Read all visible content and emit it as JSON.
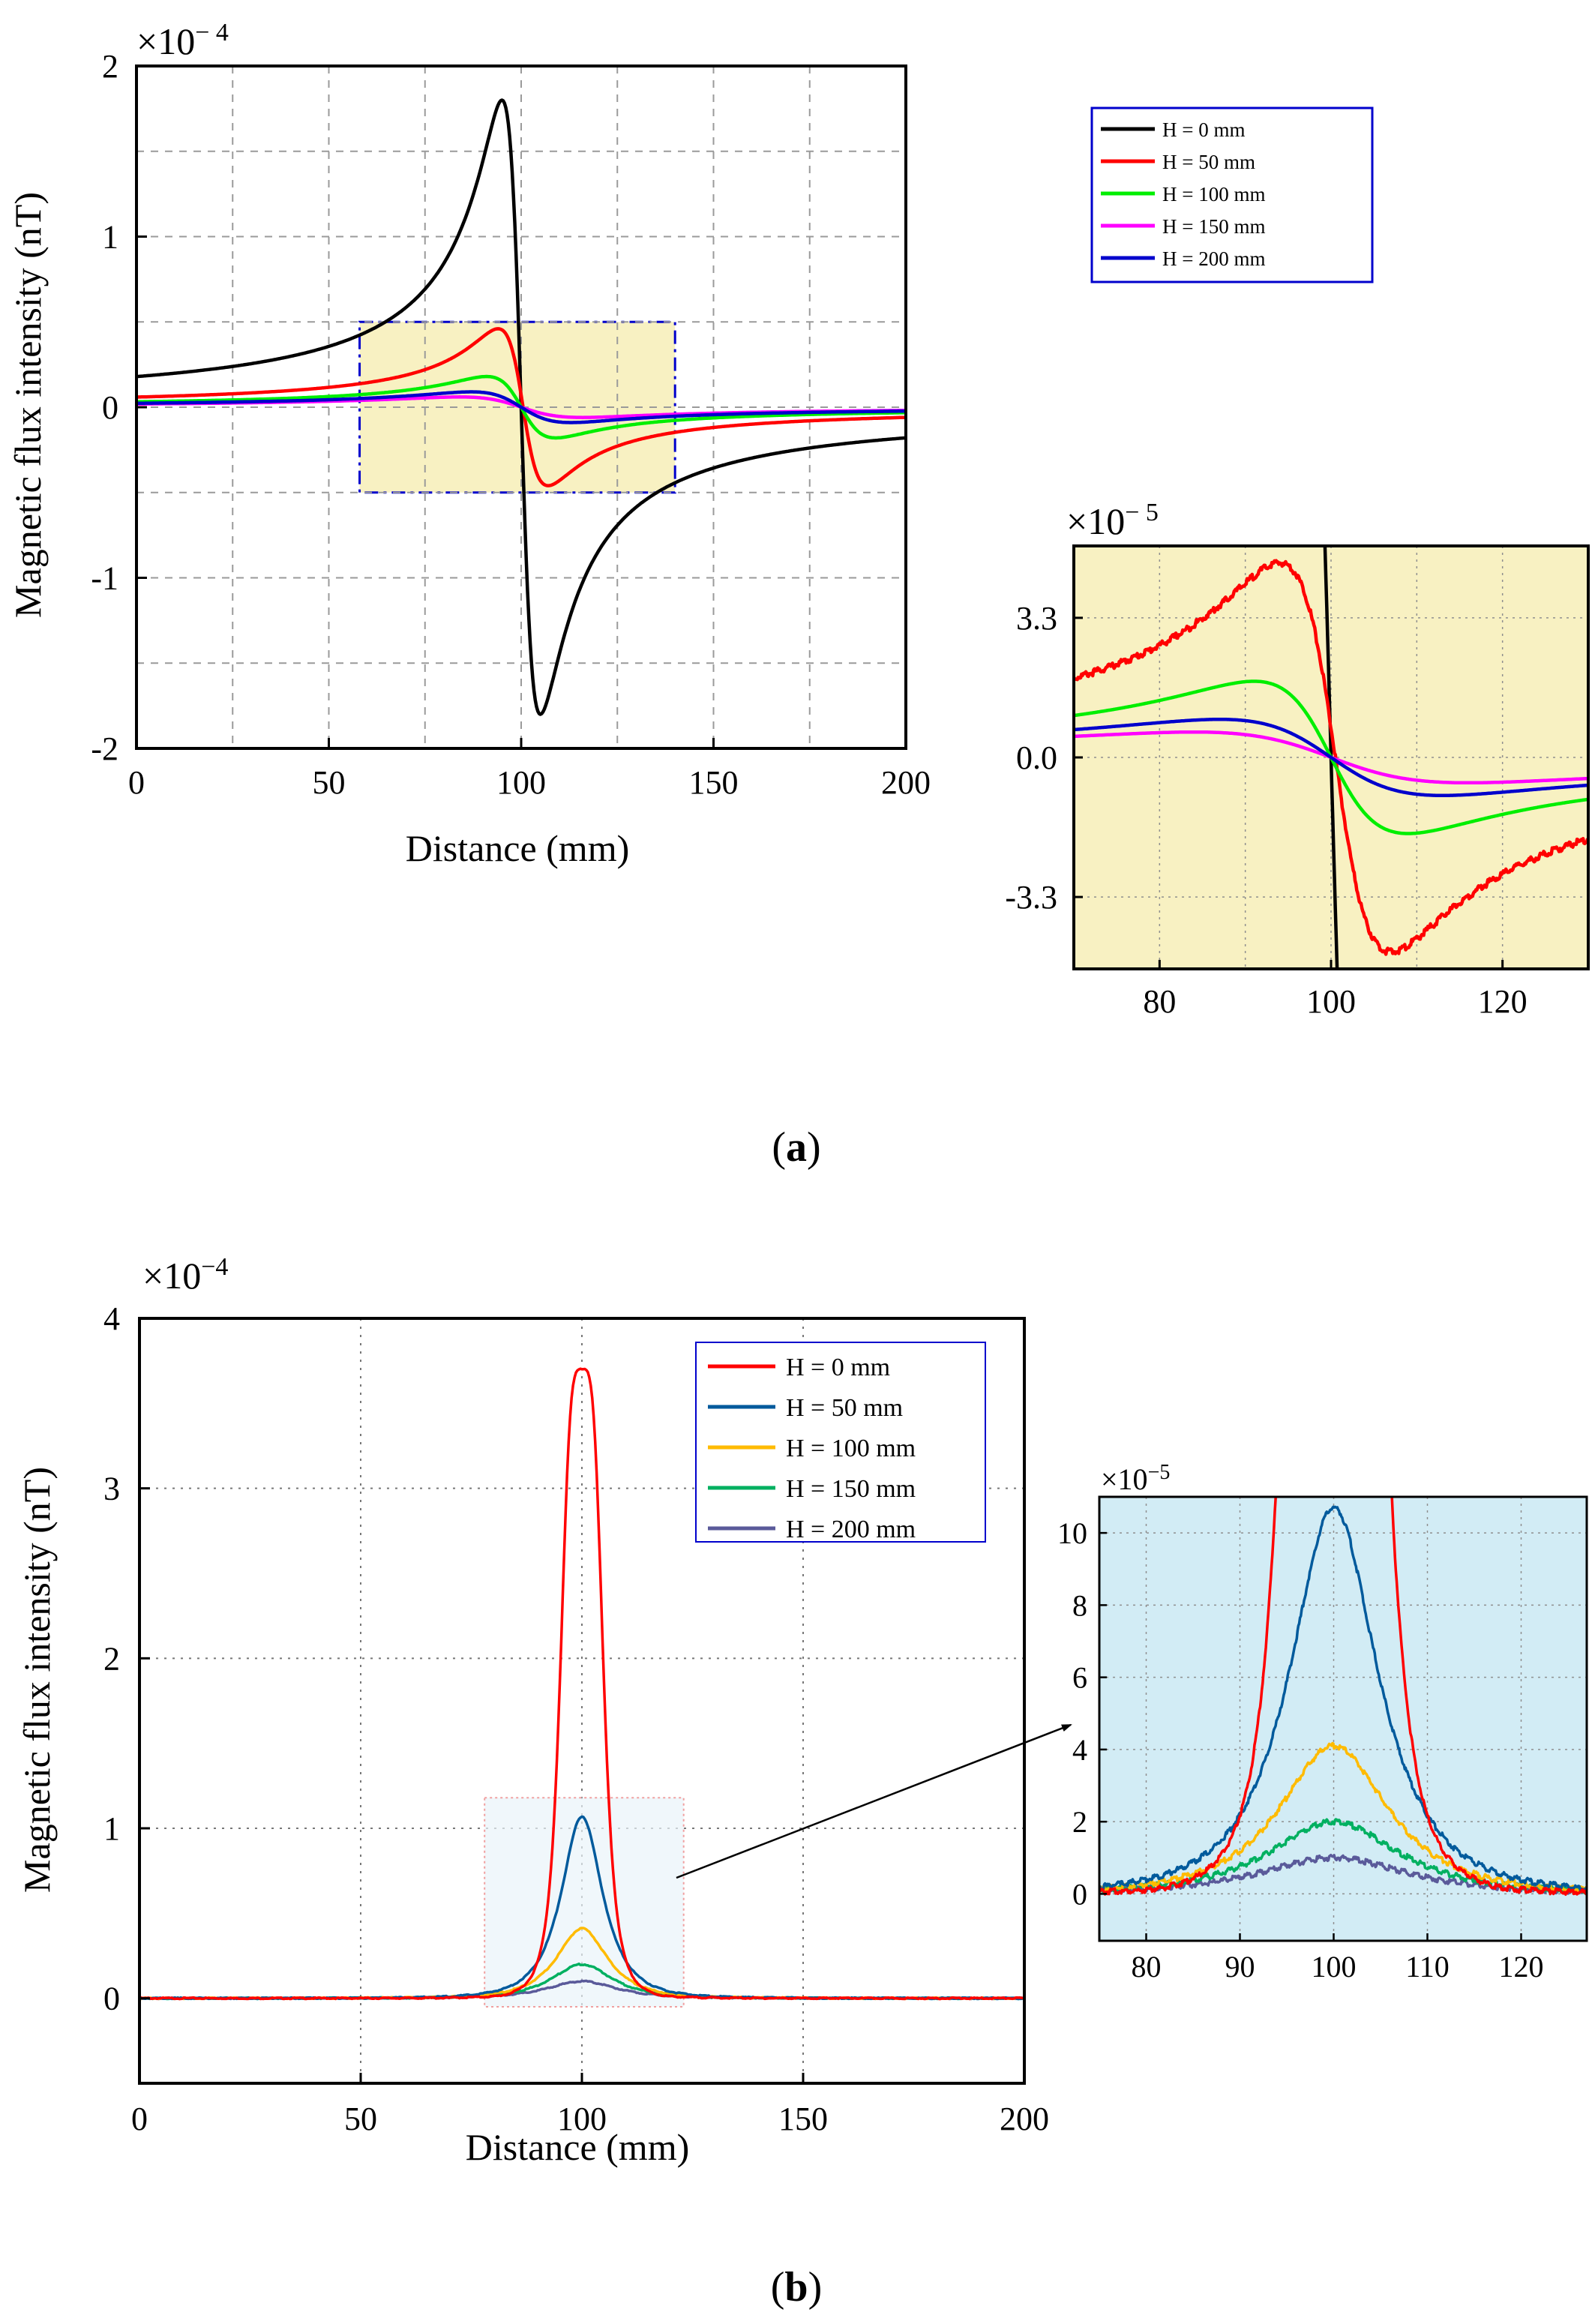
{
  "panels": [
    {
      "label": "(a)",
      "label_letter": "a"
    },
    {
      "label": "(b)",
      "label_letter": "b"
    }
  ],
  "chart_data": [
    {
      "id": "a-main",
      "type": "line",
      "xlabel": "Distance (mm)",
      "ylabel": "Magnetic flux intensity (nT)",
      "exponent_label": "×10",
      "exponent_power": "− 4",
      "xlim": [
        0,
        200
      ],
      "ylim": [
        -2,
        2
      ],
      "xticks": [
        "0",
        "50",
        "100",
        "150",
        "200"
      ],
      "yticks": [
        "-2",
        "-1",
        "0",
        "1",
        "2"
      ],
      "grid": true,
      "legend_position": "right of plot",
      "highlight_box": {
        "x": [
          58,
          140
        ],
        "y": [
          -0.5,
          0.5
        ],
        "fill": "#f8f1c2",
        "stroke": "#0000cc"
      },
      "series": [
        {
          "name": "H = 0 mm",
          "color": "#000000",
          "peak": 1.8,
          "peak_x": 95,
          "trough_x": 105,
          "width": 3.5
        },
        {
          "name": "H = 50 mm",
          "color": "#ff0000",
          "peak": 0.46,
          "peak_x": 94,
          "trough_x": 107,
          "width": 6
        },
        {
          "name": "H = 100 mm",
          "color": "#00ee00",
          "peak": 0.18,
          "peak_x": 91,
          "trough_x": 109,
          "width": 9
        },
        {
          "name": "H = 150 mm",
          "color": "#ff00ff",
          "peak": 0.06,
          "peak_x": 84,
          "trough_x": 116,
          "width": 14
        },
        {
          "name": "H = 200 mm",
          "color": "#0000cc",
          "peak": 0.09,
          "peak_x": 87,
          "trough_x": 113,
          "width": 12
        }
      ]
    },
    {
      "id": "a-inset",
      "type": "line",
      "exponent_label": "×10",
      "exponent_power": "− 5",
      "xlim": [
        70,
        130
      ],
      "ylim": [
        -5,
        5
      ],
      "xticks": [
        "80",
        "100",
        "120"
      ],
      "yticks": [
        "3.3",
        "0.0",
        "-3.3"
      ],
      "background": "#f8f1c2",
      "note": "zoom of highlighted region, same five series"
    },
    {
      "id": "b-main",
      "type": "line",
      "xlabel": "Distance (mm)",
      "ylabel": "Magnetic flux intensity (nT)",
      "exponent_label": "×10",
      "exponent_power": "−4",
      "xlim": [
        0,
        200
      ],
      "ylim": [
        -0.5,
        4
      ],
      "xticks": [
        "0",
        "50",
        "100",
        "150",
        "200"
      ],
      "yticks": [
        "0",
        "1",
        "2",
        "3",
        "4"
      ],
      "grid": true,
      "legend_position": "top-right",
      "highlight_box": {
        "x": [
          78,
          123
        ],
        "y": [
          -0.05,
          1.18
        ],
        "stroke": "#f0a0a0"
      },
      "series": [
        {
          "name": "H = 0 mm",
          "color": "#ff0000",
          "peak": 3.7,
          "peak_x": 100
        },
        {
          "name": "H = 50 mm",
          "color": "#005a9c",
          "peak": 1.07,
          "peak_x": 100
        },
        {
          "name": "H = 100 mm",
          "color": "#ffbb00",
          "peak": 0.41,
          "peak_x": 100
        },
        {
          "name": "H = 150 mm",
          "color": "#00b060",
          "peak": 0.2,
          "peak_x": 100
        },
        {
          "name": "H = 200 mm",
          "color": "#5a5a9a",
          "peak": 0.1,
          "peak_x": 100
        }
      ]
    },
    {
      "id": "b-inset",
      "type": "line",
      "exponent_label": "×10",
      "exponent_power": "−5",
      "xlim": [
        75,
        127
      ],
      "ylim": [
        -1.3,
        11
      ],
      "xticks": [
        "80",
        "90",
        "100",
        "110",
        "120"
      ],
      "yticks": [
        "0",
        "2",
        "4",
        "6",
        "8",
        "10"
      ],
      "background": "#d2ecf5",
      "note": "zoom of highlighted region, same five series"
    }
  ]
}
